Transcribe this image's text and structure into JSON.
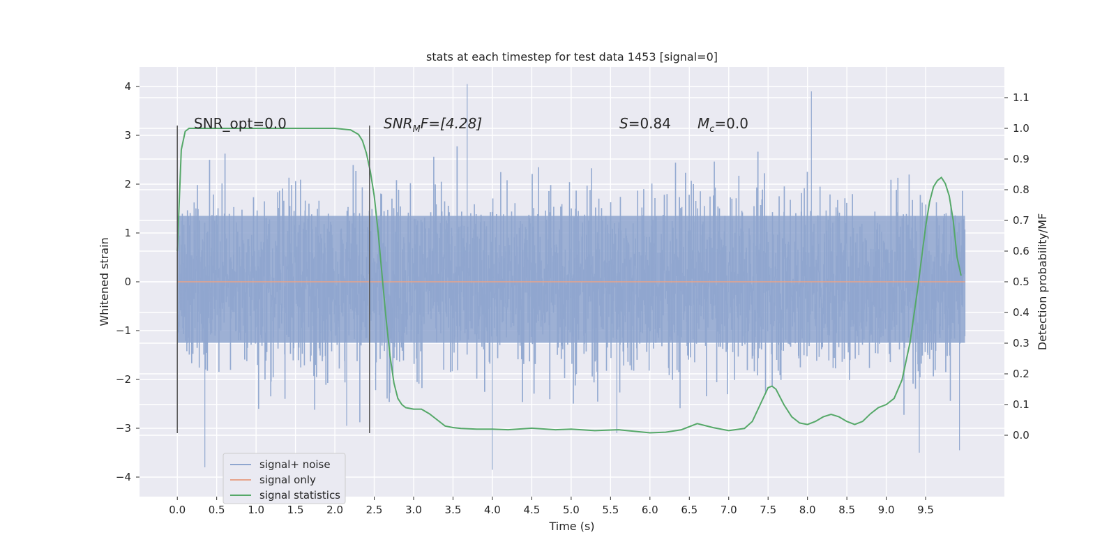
{
  "chart_data": {
    "type": "line",
    "title": "stats at each timestep for test data 1453 [signal=0]",
    "xlabel": "Time (s)",
    "ylabel": "Whitened strain",
    "ylabel_right": "Detection probability/MF",
    "xlim": [
      -0.48,
      10.5
    ],
    "ylim": [
      -4.4,
      4.4
    ],
    "ylim_right": [
      -0.2,
      1.2
    ],
    "x_ticks": [
      "0.0",
      "0.5",
      "1.0",
      "1.5",
      "2.0",
      "2.5",
      "3.0",
      "3.5",
      "4.0",
      "4.5",
      "5.0",
      "5.5",
      "6.0",
      "6.5",
      "7.0",
      "7.5",
      "8.0",
      "8.5",
      "9.0",
      "9.5"
    ],
    "y_ticks": [
      "−4",
      "−3",
      "−2",
      "−1",
      "0",
      "1",
      "2",
      "3",
      "4"
    ],
    "y_ticks_right": [
      "0.0",
      "0.1",
      "0.2",
      "0.3",
      "0.4",
      "0.5",
      "0.6",
      "0.7",
      "0.8",
      "0.9",
      "1.0",
      "1.1"
    ],
    "grid": true,
    "legend_position": "lower-left",
    "annotations": {
      "snr_opt": "SNR_opt=0.0",
      "snr_mf_main": "SNR",
      "snr_mf_sub": "M",
      "snr_mf_rest": "F=[4.28]",
      "s_sym": "S",
      "s_rest": "=0.84",
      "mc_sym": "M",
      "mc_sub": "c",
      "mc_rest": "=0.0"
    },
    "vlines": [
      0.0,
      2.44
    ],
    "vline_range": [
      -3.1,
      3.2
    ],
    "noise_range": [
      0.0,
      10.0
    ],
    "series": [
      {
        "name": "signal+ noise",
        "axis": "left",
        "color": "#8fa6cf",
        "style": "dense-noise",
        "envelope": [
          -1.25,
          1.35
        ],
        "peak_range": [
          -3.9,
          4.05
        ],
        "notable_peaks": [
          [
            3.68,
            4.05
          ],
          [
            8.05,
            3.9
          ],
          [
            4.0,
            -3.85
          ],
          [
            0.35,
            -3.8
          ],
          [
            9.42,
            -3.5
          ],
          [
            9.93,
            -3.45
          ],
          [
            5.58,
            -3.1
          ],
          [
            2.15,
            -2.95
          ]
        ]
      },
      {
        "name": "signal only",
        "axis": "left",
        "color": "#e7a38a",
        "x": [
          0.0,
          10.0
        ],
        "y": [
          0.0,
          0.0
        ]
      },
      {
        "name": "signal statistics",
        "axis": "right",
        "color": "#55a868",
        "x": [
          0.0,
          0.05,
          0.1,
          0.15,
          0.2,
          0.3,
          0.5,
          1.0,
          1.5,
          2.0,
          2.2,
          2.3,
          2.35,
          2.4,
          2.45,
          2.5,
          2.55,
          2.6,
          2.65,
          2.7,
          2.75,
          2.8,
          2.85,
          2.9,
          3.0,
          3.1,
          3.2,
          3.3,
          3.4,
          3.5,
          3.6,
          3.8,
          4.0,
          4.2,
          4.5,
          4.8,
          5.0,
          5.3,
          5.6,
          6.0,
          6.2,
          6.4,
          6.6,
          6.8,
          7.0,
          7.2,
          7.3,
          7.4,
          7.5,
          7.55,
          7.6,
          7.7,
          7.8,
          7.9,
          8.0,
          8.1,
          8.2,
          8.3,
          8.4,
          8.5,
          8.6,
          8.7,
          8.8,
          8.9,
          9.0,
          9.1,
          9.2,
          9.3,
          9.4,
          9.45,
          9.5,
          9.55,
          9.6,
          9.65,
          9.7,
          9.75,
          9.8,
          9.85,
          9.9,
          9.95
        ],
        "y": [
          0.6,
          0.93,
          0.99,
          1.0,
          1.0,
          1.0,
          1.0,
          1.0,
          1.0,
          1.0,
          0.995,
          0.98,
          0.96,
          0.92,
          0.86,
          0.78,
          0.66,
          0.52,
          0.38,
          0.26,
          0.17,
          0.12,
          0.1,
          0.09,
          0.085,
          0.085,
          0.07,
          0.05,
          0.03,
          0.025,
          0.022,
          0.02,
          0.02,
          0.018,
          0.023,
          0.018,
          0.02,
          0.015,
          0.018,
          0.008,
          0.01,
          0.018,
          0.038,
          0.025,
          0.015,
          0.022,
          0.045,
          0.1,
          0.155,
          0.16,
          0.15,
          0.1,
          0.06,
          0.04,
          0.035,
          0.045,
          0.06,
          0.068,
          0.06,
          0.045,
          0.035,
          0.045,
          0.07,
          0.09,
          0.1,
          0.12,
          0.18,
          0.3,
          0.48,
          0.58,
          0.68,
          0.76,
          0.81,
          0.83,
          0.84,
          0.82,
          0.78,
          0.7,
          0.58,
          0.52
        ]
      }
    ]
  }
}
